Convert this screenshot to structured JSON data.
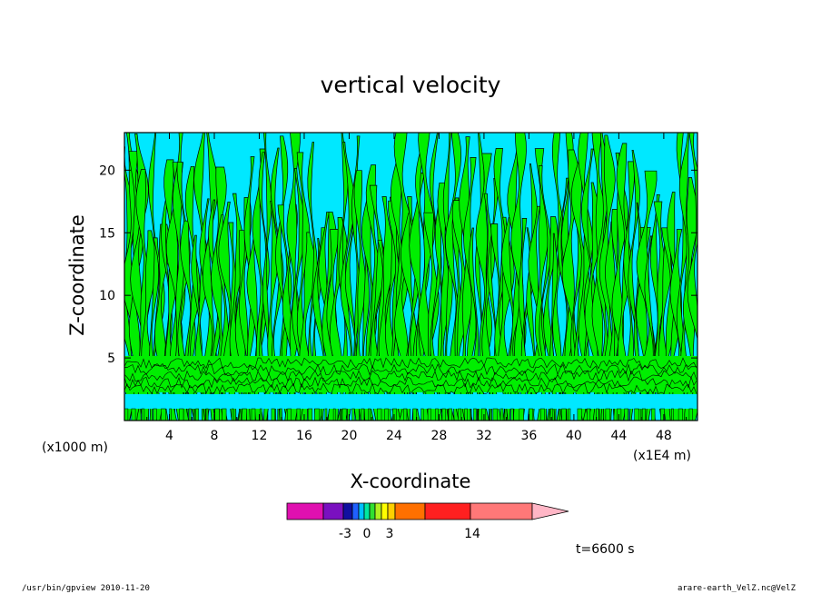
{
  "chart_data": {
    "type": "heatmap",
    "title": "vertical velocity",
    "xlabel": "X-coordinate",
    "ylabel": "Z-coordinate",
    "x_units": "(x1E4 m)",
    "y_units": "(x1000 m)",
    "xlim": [
      0,
      51
    ],
    "ylim": [
      0,
      23
    ],
    "x_ticks": [
      "4",
      "8",
      "12",
      "16",
      "20",
      "24",
      "28",
      "32",
      "36",
      "40",
      "44",
      "48"
    ],
    "y_ticks": [
      "5",
      "10",
      "15",
      "20"
    ],
    "colorbar": {
      "tick_labels": [
        "-3",
        "0",
        "3",
        "14"
      ],
      "colors": [
        "#e010b0",
        "#7a10c0",
        "#1010a0",
        "#2060ff",
        "#00c0ff",
        "#00e8a0",
        "#30e030",
        "#b0f020",
        "#ffff00",
        "#ffd000",
        "#ff7000",
        "#ff2020",
        "#ff7878",
        "#ffb6c6"
      ]
    },
    "fill_colors": {
      "positive": "#00ee00",
      "negative": "#00e8ff"
    },
    "timestamp": "t=6600 s",
    "footer_left": "/usr/bin/gpview   2010-11-20",
    "footer_right": "arare-earth_VelZ.nc@VelZ"
  }
}
